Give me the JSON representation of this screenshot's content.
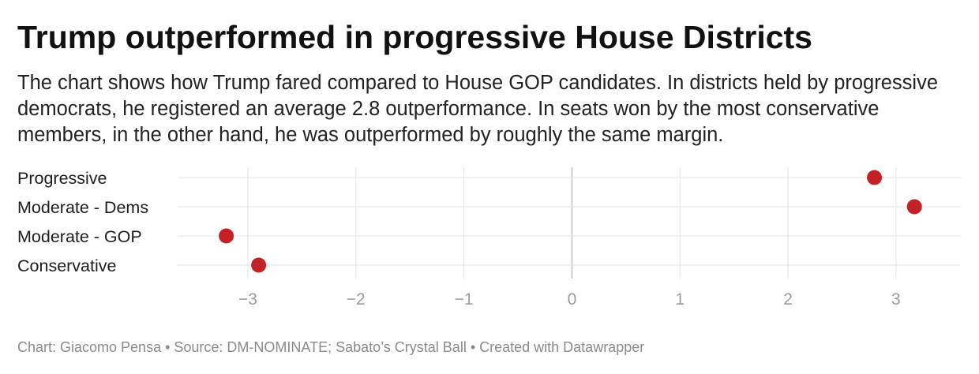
{
  "header": {
    "title": "Trump outperformed in progressive House Districts",
    "subtitle": "The chart shows how Trump fared compared to House GOP candidates. In districts held by progressive democrats, he registered an average 2.8 outperformance. In seats won by the most conservative members, in the other hand, he was outperformed by roughly the same margin."
  },
  "footer": {
    "credit": "Chart: Giacomo Pensa • Source: DM-NOMINATE; Sabato’s Crystal Ball • Created with Datawrapper"
  },
  "chart_data": {
    "type": "scatter",
    "title": "Trump outperformed in progressive House Districts",
    "categories": [
      "Progressive",
      "Moderate - Dems",
      "Moderate - GOP",
      "Conservative"
    ],
    "values": [
      2.8,
      3.17,
      -3.2,
      -2.9
    ],
    "xlim": [
      -3.65,
      3.6
    ],
    "xticks": [
      -3,
      -2,
      -1,
      0,
      1,
      2,
      3
    ],
    "xtick_labels": [
      "−3",
      "−2",
      "−1",
      "0",
      "1",
      "2",
      "3"
    ],
    "xlabel": "",
    "ylabel": "",
    "grid": true,
    "colors": {
      "dot": "#c42126",
      "grid": "#e3e3e3",
      "zero_line": "#c2c2c2",
      "tick_label": "#9a9a9a"
    }
  }
}
